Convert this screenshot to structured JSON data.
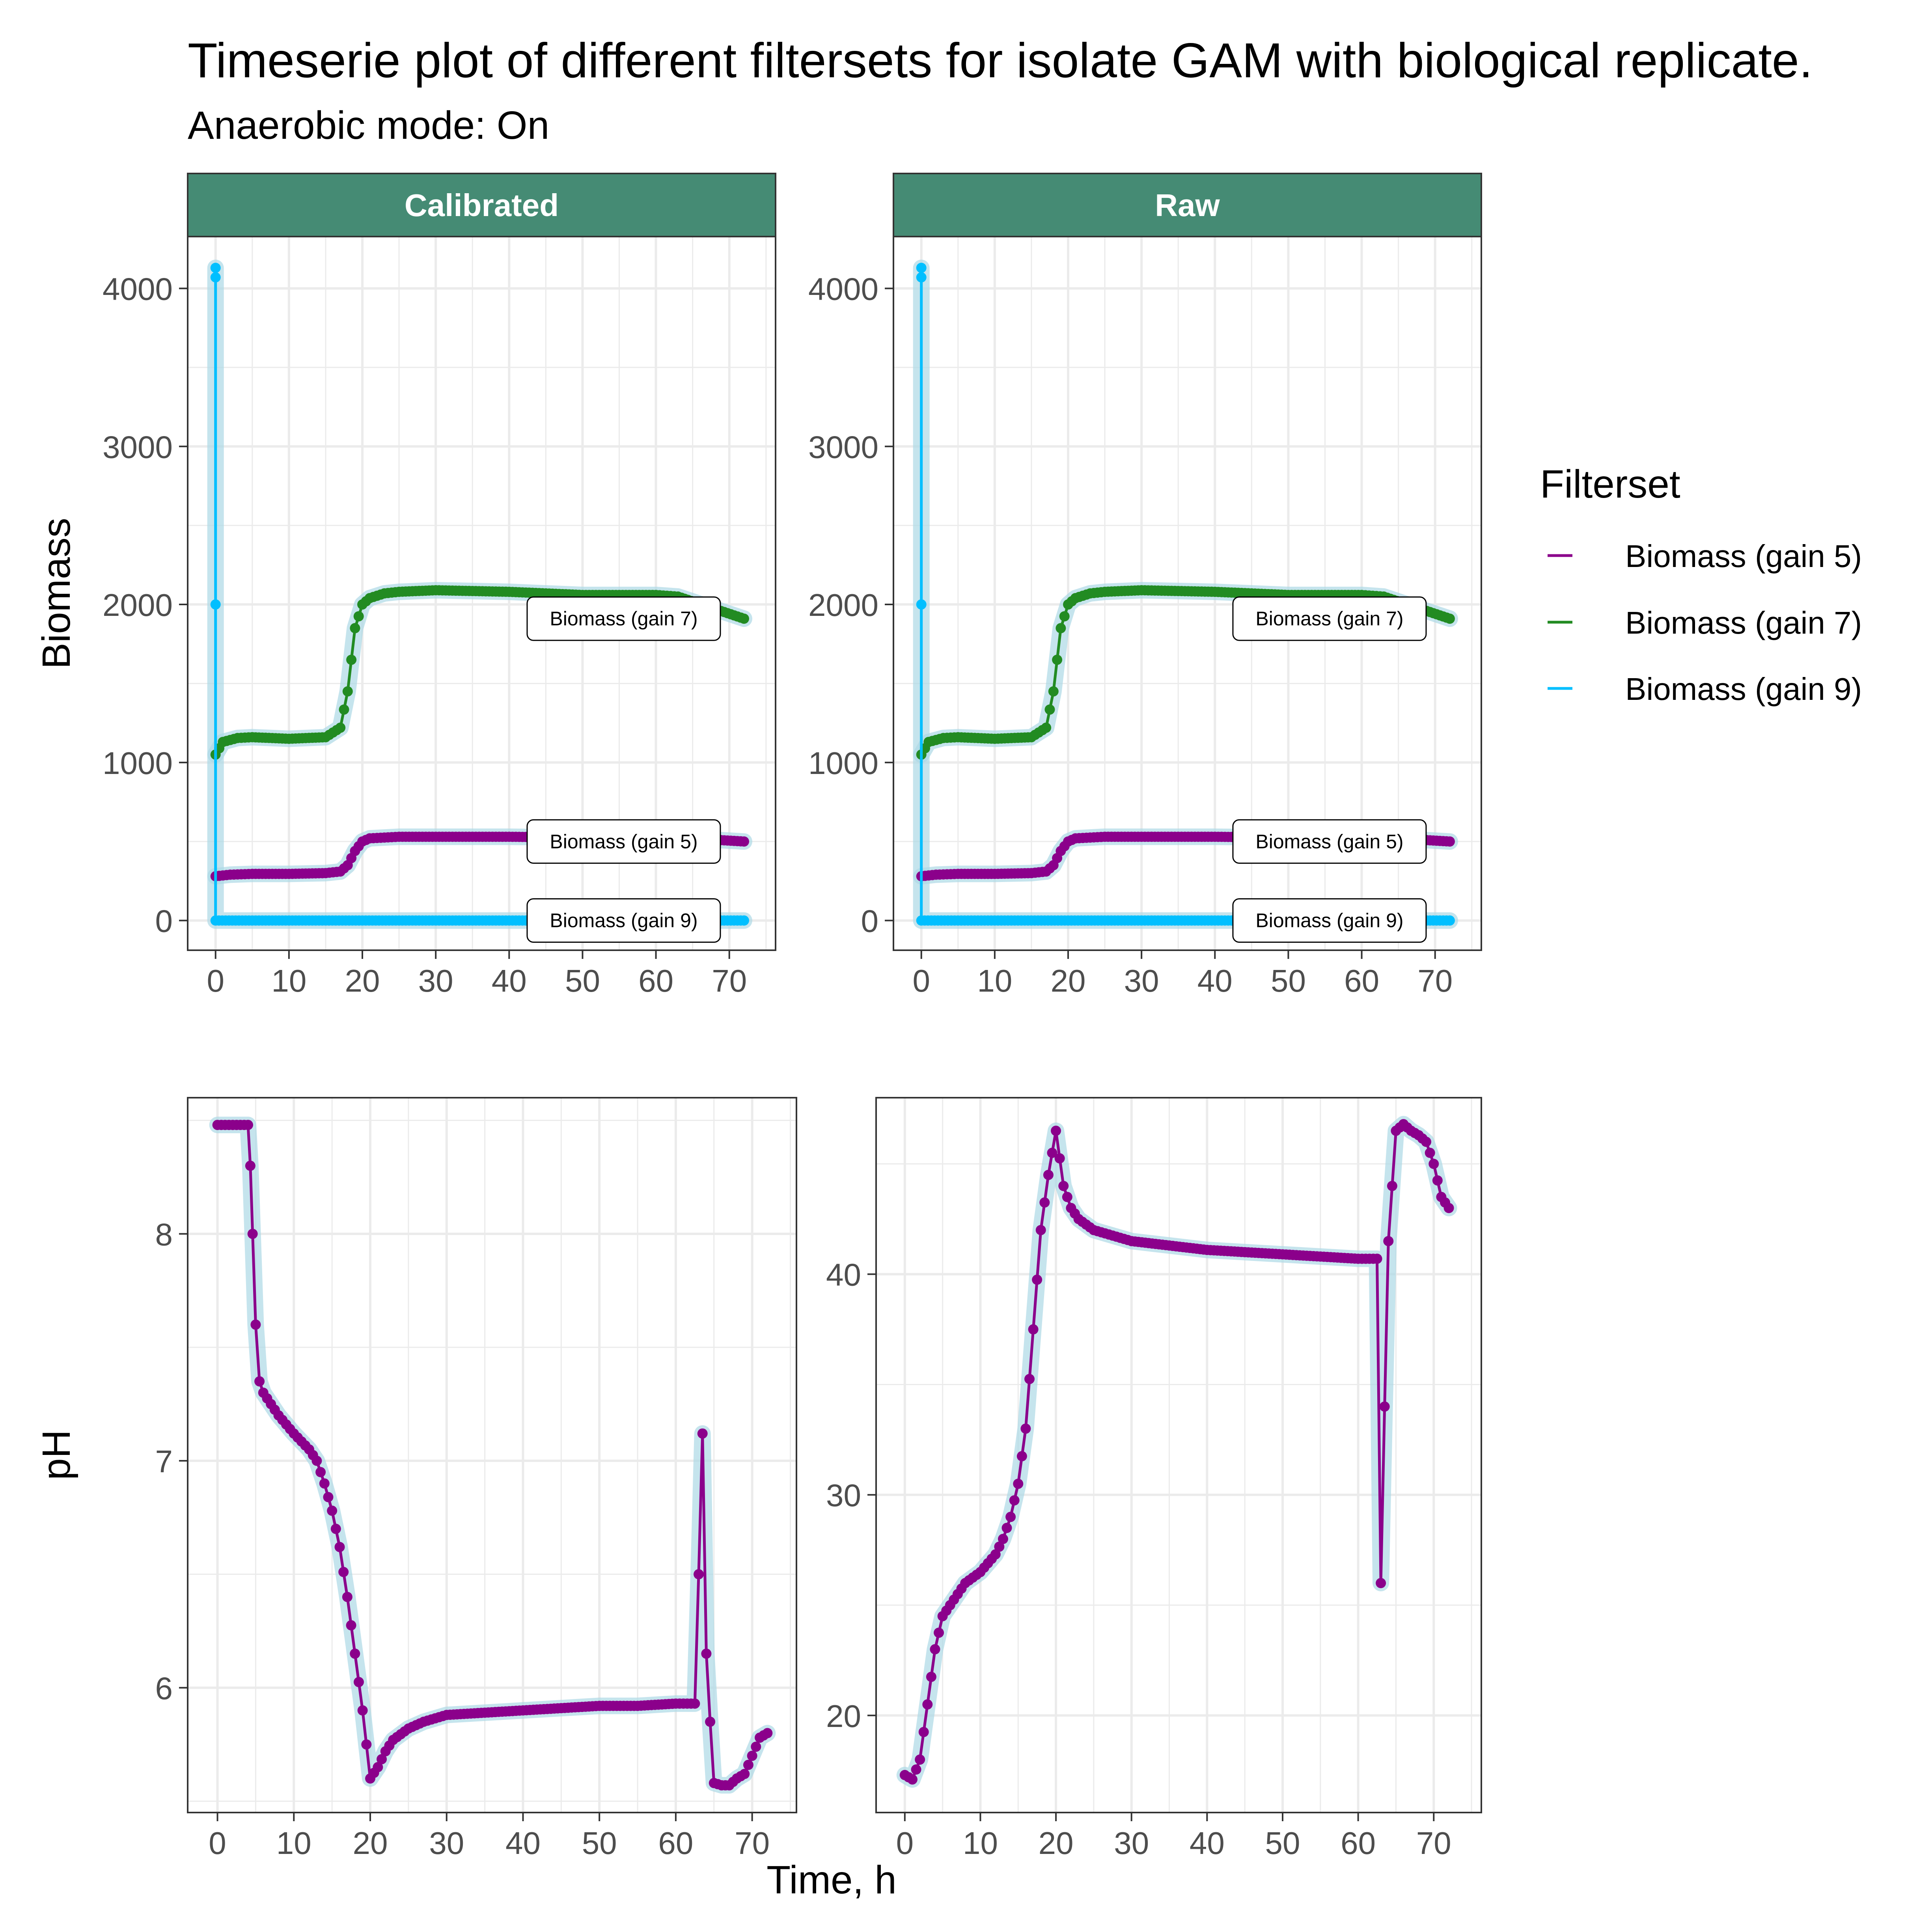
{
  "title": "Timeserie plot of different filtersets for isolate GAM with biological replicate.",
  "subtitle": "Anaerobic mode: On",
  "x_axis_label": "Time, h",
  "legend": {
    "title": "Filterset",
    "items": [
      {
        "label": "Biomass (gain 5)",
        "color": "#8B008B"
      },
      {
        "label": "Biomass (gain 7)",
        "color": "#228B22"
      },
      {
        "label": "Biomass (gain 9)",
        "color": "#00BFFF"
      }
    ]
  },
  "colors": {
    "strip_fill": "#458B74",
    "halo": "#ADD8E6",
    "grid": "#EBEBEB",
    "panel_border": "#333333"
  },
  "chart_data": [
    {
      "type": "line",
      "panel": "Calibrated",
      "strip": "Calibrated",
      "ylabel": "Biomass",
      "xlim": [
        -3.8,
        76.3
      ],
      "ylim": [
        -188,
        4328
      ],
      "xticks": [
        0,
        10,
        20,
        30,
        40,
        50,
        60,
        70
      ],
      "yticks": [
        0,
        1000,
        2000,
        3000,
        4000
      ],
      "grid": true,
      "series": [
        {
          "name": "Biomass (gain 5)",
          "color": "#8B008B",
          "end_label": "Biomass (gain 5)",
          "x": [
            0,
            2,
            5,
            10,
            15,
            17,
            18,
            19,
            20,
            21,
            25,
            30,
            40,
            50,
            60,
            63,
            72
          ],
          "y": [
            280,
            290,
            295,
            295,
            300,
            310,
            350,
            440,
            500,
            520,
            530,
            530,
            530,
            525,
            525,
            525,
            500
          ]
        },
        {
          "name": "Biomass (gain 7)",
          "color": "#228B22",
          "end_label": "Biomass (gain 7)",
          "x": [
            0,
            1,
            3,
            5,
            10,
            15,
            17,
            18,
            19,
            20,
            21,
            23,
            25,
            30,
            40,
            50,
            60,
            63,
            72
          ],
          "y": [
            1050,
            1130,
            1155,
            1160,
            1150,
            1160,
            1220,
            1450,
            1850,
            2000,
            2040,
            2070,
            2080,
            2090,
            2080,
            2060,
            2060,
            2050,
            1910
          ]
        },
        {
          "name": "Biomass (gain 9)",
          "color": "#00BFFF",
          "end_label": "Biomass (gain 9)",
          "x": [
            0,
            0,
            0,
            0,
            5,
            10,
            20,
            30,
            40,
            50,
            60,
            63,
            72
          ],
          "y": [
            4130,
            4070,
            2000,
            0,
            0,
            0,
            0,
            0,
            0,
            0,
            0,
            0,
            0
          ]
        }
      ]
    },
    {
      "type": "line",
      "panel": "Raw",
      "strip": "Raw",
      "ylabel": "",
      "xlim": [
        -3.8,
        76.3
      ],
      "ylim": [
        -188,
        4328
      ],
      "xticks": [
        0,
        10,
        20,
        30,
        40,
        50,
        60,
        70
      ],
      "yticks": [
        0,
        1000,
        2000,
        3000,
        4000
      ],
      "grid": true,
      "series": [
        {
          "name": "Biomass (gain 5)",
          "color": "#8B008B",
          "end_label": "Biomass (gain 5)",
          "x": [
            0,
            2,
            5,
            10,
            15,
            17,
            18,
            19,
            20,
            21,
            25,
            30,
            40,
            50,
            60,
            63,
            72
          ],
          "y": [
            280,
            290,
            295,
            295,
            300,
            310,
            350,
            440,
            500,
            520,
            530,
            530,
            530,
            525,
            525,
            525,
            500
          ]
        },
        {
          "name": "Biomass (gain 7)",
          "color": "#228B22",
          "end_label": "Biomass (gain 7)",
          "x": [
            0,
            1,
            3,
            5,
            10,
            15,
            17,
            18,
            19,
            20,
            21,
            23,
            25,
            30,
            40,
            50,
            60,
            63,
            72
          ],
          "y": [
            1050,
            1130,
            1155,
            1160,
            1150,
            1160,
            1220,
            1450,
            1850,
            2000,
            2040,
            2070,
            2080,
            2090,
            2080,
            2060,
            2060,
            2050,
            1910
          ]
        },
        {
          "name": "Biomass (gain 9)",
          "color": "#00BFFF",
          "end_label": "Biomass (gain 9)",
          "x": [
            0,
            0,
            0,
            0,
            5,
            10,
            20,
            30,
            40,
            50,
            60,
            63,
            72
          ],
          "y": [
            4130,
            4070,
            2000,
            0,
            0,
            0,
            0,
            0,
            0,
            0,
            0,
            0,
            0
          ]
        }
      ]
    },
    {
      "type": "line",
      "panel": "pH calibrated",
      "ylabel": "pH",
      "xlim": [
        -3.9,
        75.8
      ],
      "ylim": [
        5.45,
        8.6
      ],
      "xticks": [
        0,
        10,
        20,
        30,
        40,
        50,
        60,
        70
      ],
      "yticks": [
        6,
        7,
        8
      ],
      "grid": true,
      "series": [
        {
          "name": "Biomass (gain 5)",
          "color": "#8B008B",
          "x": [
            0,
            1,
            2,
            3,
            4,
            4.3,
            4.6,
            5,
            5.5,
            6,
            8,
            10,
            12,
            13,
            14,
            15,
            16,
            17,
            18,
            19,
            20,
            21,
            22,
            23,
            25,
            27,
            30,
            40,
            50,
            55,
            60,
            62.5,
            63,
            63.5,
            64,
            64.5,
            65,
            66,
            67,
            68,
            69,
            70,
            71,
            72
          ],
          "y": [
            8.48,
            8.48,
            8.48,
            8.48,
            8.48,
            8.3,
            8.0,
            7.6,
            7.35,
            7.3,
            7.2,
            7.12,
            7.05,
            7.0,
            6.9,
            6.78,
            6.62,
            6.4,
            6.15,
            5.9,
            5.6,
            5.65,
            5.72,
            5.77,
            5.82,
            5.85,
            5.88,
            5.9,
            5.92,
            5.92,
            5.93,
            5.93,
            6.5,
            7.12,
            6.15,
            5.85,
            5.58,
            5.57,
            5.57,
            5.6,
            5.62,
            5.7,
            5.78,
            5.8
          ]
        }
      ]
    },
    {
      "type": "line",
      "panel": "pH raw",
      "ylabel": "",
      "xlim": [
        -3.8,
        76.3
      ],
      "ylim": [
        15.6,
        48.0
      ],
      "xticks": [
        0,
        10,
        20,
        30,
        40,
        50,
        60,
        70
      ],
      "yticks": [
        20,
        30,
        40
      ],
      "grid": true,
      "series": [
        {
          "name": "Biomass (gain 5)",
          "color": "#8B008B",
          "x": [
            0,
            1,
            2,
            3,
            4,
            5,
            6,
            7,
            8,
            10,
            12,
            13,
            14,
            15,
            16,
            17,
            18,
            19,
            19.5,
            20,
            21,
            22,
            23,
            25,
            27,
            30,
            35,
            40,
            45,
            50,
            55,
            60,
            62.5,
            63,
            63.5,
            64,
            65,
            66,
            67,
            68,
            69,
            70,
            71,
            72
          ],
          "y": [
            17.3,
            17.1,
            18.0,
            20.5,
            23.0,
            24.5,
            25.0,
            25.5,
            26.0,
            26.5,
            27.3,
            28.0,
            29.0,
            30.5,
            33.0,
            37.5,
            42.0,
            44.5,
            45.5,
            46.5,
            44.0,
            43.0,
            42.5,
            42.0,
            41.8,
            41.5,
            41.3,
            41.1,
            41.0,
            40.9,
            40.8,
            40.7,
            40.7,
            26.0,
            34.0,
            41.5,
            46.5,
            46.8,
            46.5,
            46.3,
            46.0,
            45.0,
            43.5,
            43.0
          ]
        }
      ]
    }
  ]
}
